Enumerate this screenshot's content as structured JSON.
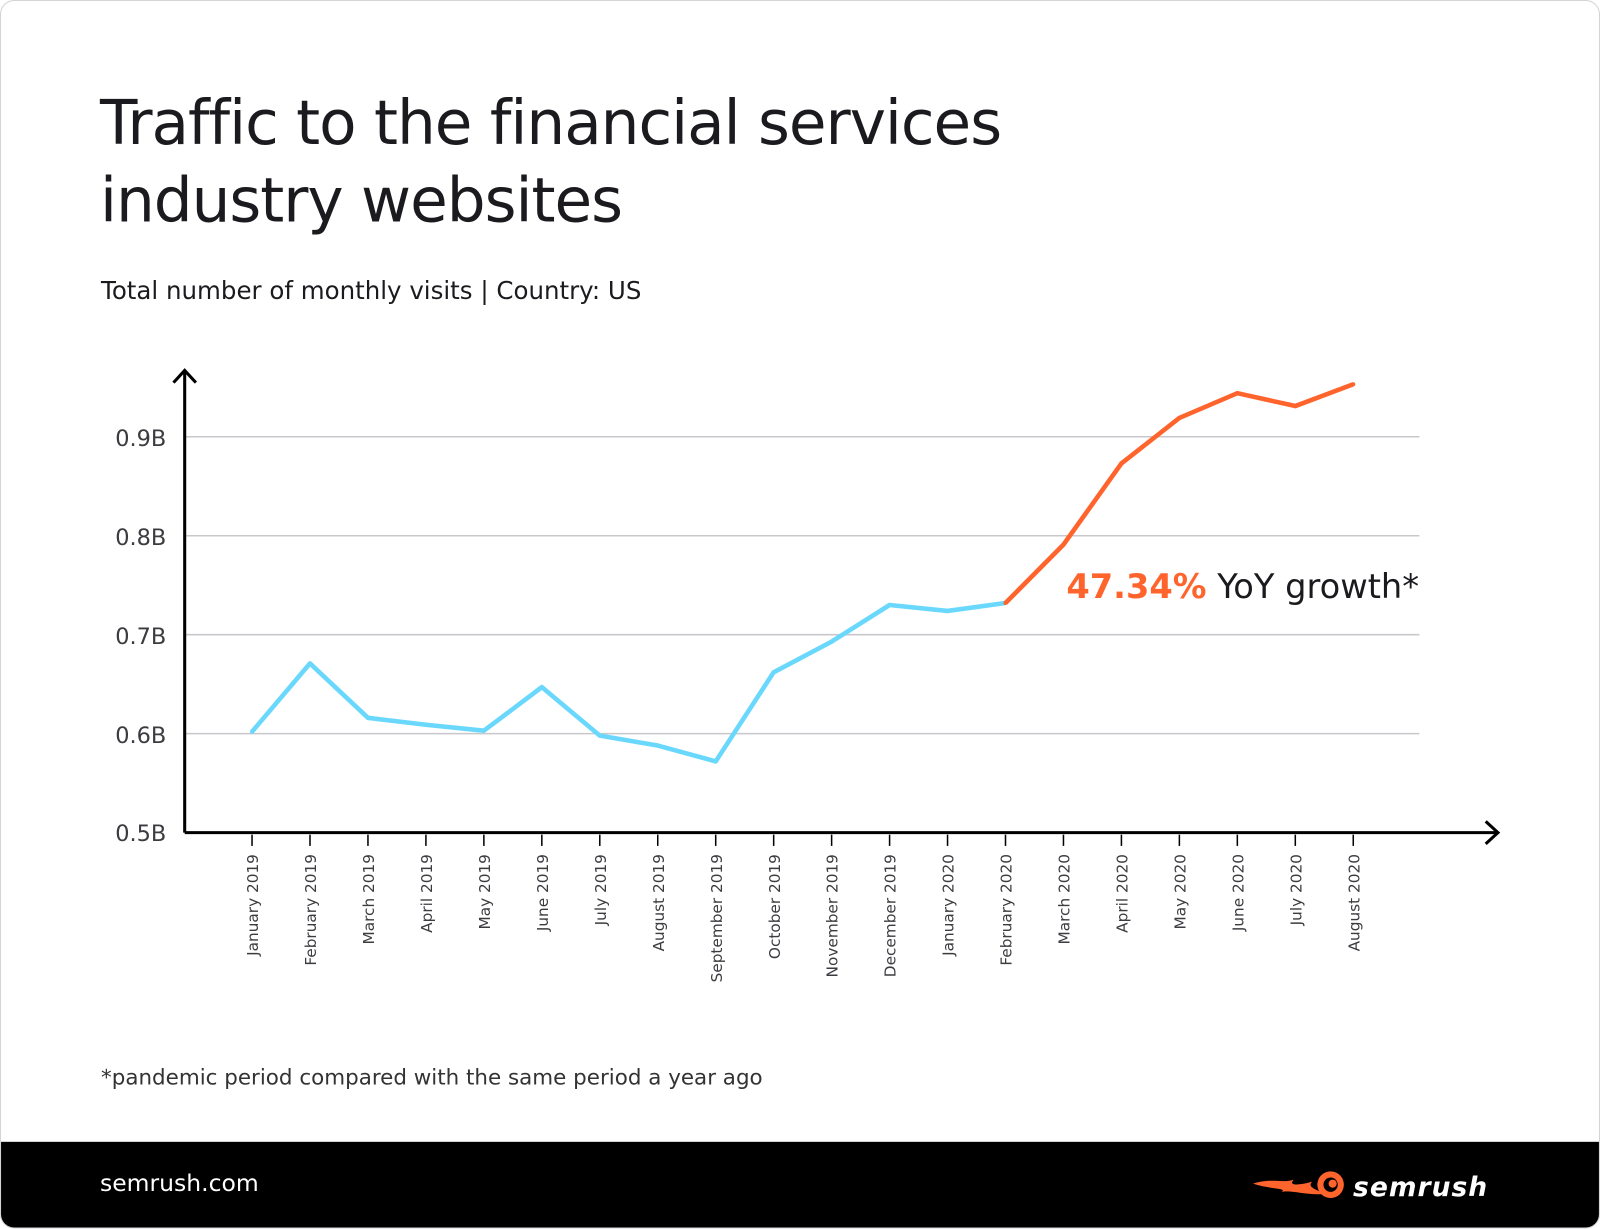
{
  "title_line1": "Traffic to the financial services",
  "title_line2": "industry websites",
  "subtitle": "Total number of monthly visits | Country: US",
  "footnote": "*pandemic period compared with the same period a year ago",
  "footer": {
    "url": "semrush.com",
    "logo": "SEMRUSH"
  },
  "chart_data": {
    "type": "line",
    "title": "Traffic to the financial services industry websites",
    "subtitle": "Total number of monthly visits | Country: US",
    "categories": [
      "January 2019",
      "February 2019",
      "March 2019",
      "April 2019",
      "May 2019",
      "June 2019",
      "July 2019",
      "August 2019",
      "September 2019",
      "October 2019",
      "November 2019",
      "December 2019",
      "January 2020",
      "February 2020",
      "March 2020",
      "April 2020",
      "May 2020",
      "June 2020",
      "July 2020",
      "August 2020"
    ],
    "values": [
      0.602,
      0.671,
      0.616,
      0.609,
      0.603,
      0.647,
      0.598,
      0.588,
      0.572,
      0.662,
      0.693,
      0.73,
      0.724,
      0.732,
      0.791,
      0.873,
      0.919,
      0.944,
      0.931,
      0.953
    ],
    "unit": "B",
    "ylim": [
      0.5,
      0.97
    ],
    "yticks": [
      "0.5B",
      "0.6B",
      "0.7B",
      "0.8B",
      "0.9B"
    ],
    "ytick_values": [
      0.5,
      0.6,
      0.7,
      0.8,
      0.9
    ],
    "grid": true,
    "highlight_from": "February 2020",
    "colors": {
      "pre": "#6ad8fd",
      "pandemic": "#ff642d"
    },
    "annotation": {
      "value": "47.34%",
      "text": " YoY growth*"
    }
  }
}
